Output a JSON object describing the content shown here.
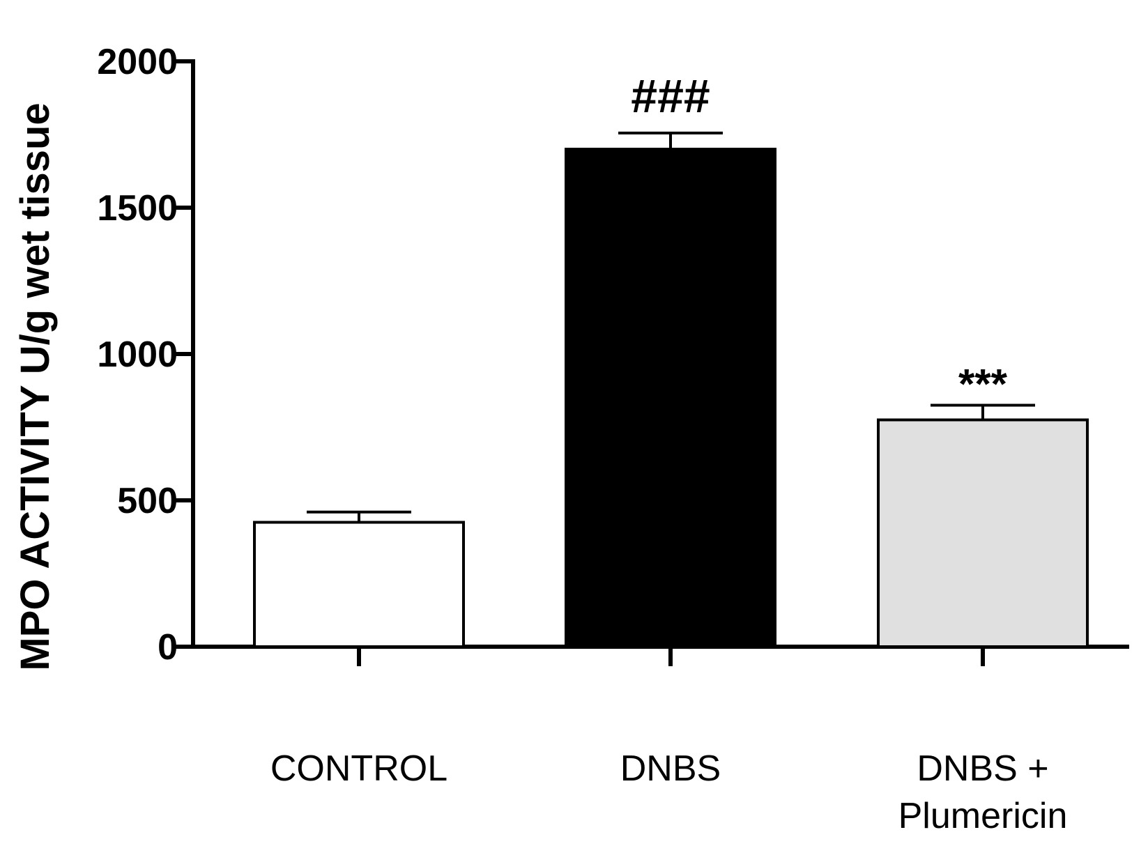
{
  "chart_data": {
    "type": "bar",
    "title": "",
    "xlabel": "",
    "ylabel": "MPO ACTIVITY U/g wet tissue",
    "ylim": [
      0,
      2000
    ],
    "yticks": [
      0,
      500,
      1000,
      1500,
      2000
    ],
    "grid": false,
    "categories": [
      [
        "CONTROL"
      ],
      [
        "DNBS"
      ],
      [
        "DNBS +",
        "Plumericin"
      ]
    ],
    "values": [
      425,
      1700,
      775
    ],
    "errors": [
      35,
      55,
      50
    ],
    "annotations": [
      "",
      "###",
      "***"
    ],
    "colors": [
      "#ffffff",
      "#000000",
      "#e0e0e0"
    ]
  }
}
